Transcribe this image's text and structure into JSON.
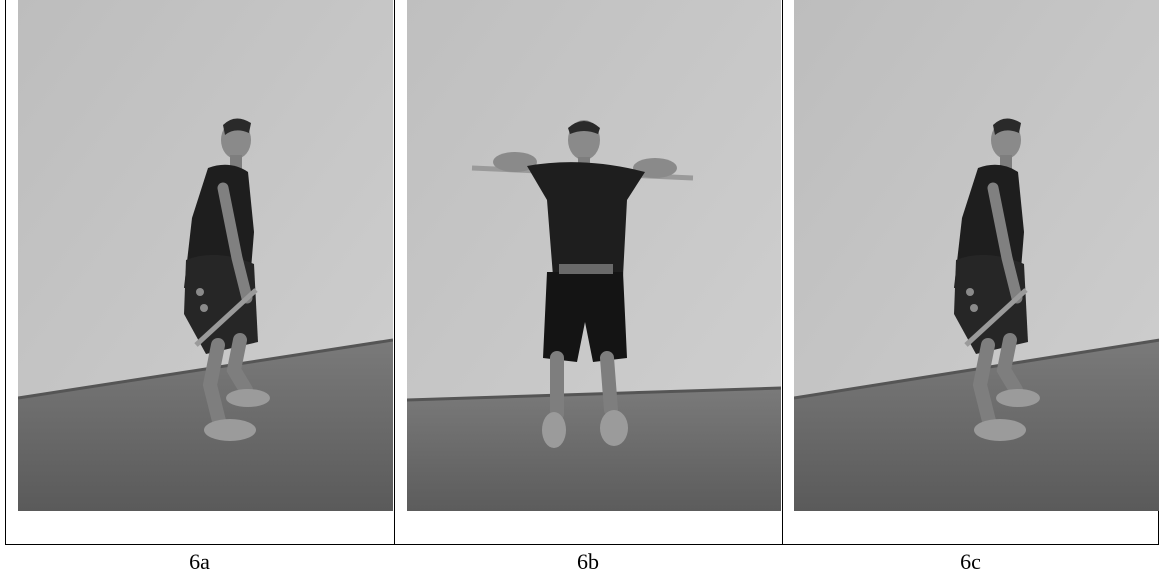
{
  "colors": {
    "wall": "#c4c4c4",
    "floor": "#6e6e6e",
    "shirt": "#1e1e1e",
    "skin": "#8a8a8a",
    "stick": "#9a9a9a"
  },
  "panels": [
    {
      "caption": "6a",
      "pose": "side-squat-stick-low"
    },
    {
      "caption": "6b",
      "pose": "front-stick-overhead"
    },
    {
      "caption": "6c",
      "pose": "side-squat-stick-low"
    }
  ]
}
